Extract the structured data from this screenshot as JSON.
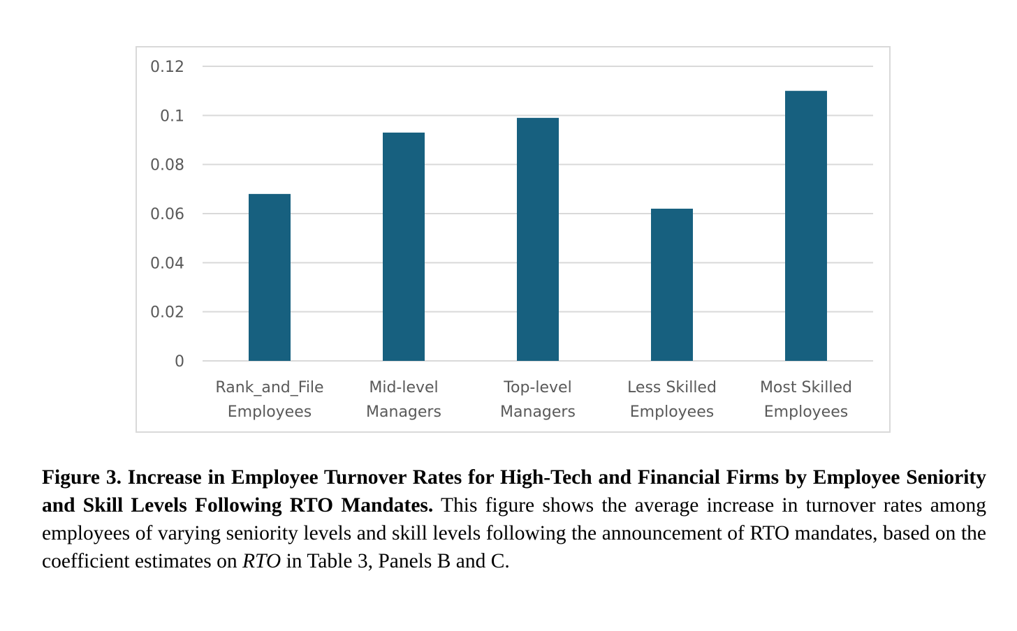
{
  "chart_data": {
    "type": "bar",
    "categories": [
      [
        "Rank_and_File",
        "Employees"
      ],
      [
        "Mid-level",
        "Managers"
      ],
      [
        "Top-level",
        "Managers"
      ],
      [
        "Less Skilled",
        "Employees"
      ],
      [
        "Most Skilled",
        "Employees"
      ]
    ],
    "values": [
      0.068,
      0.093,
      0.099,
      0.062,
      0.11
    ],
    "ylim": [
      0,
      0.12
    ],
    "yticks": [
      0,
      0.02,
      0.04,
      0.06,
      0.08,
      0.1,
      0.12
    ],
    "ytick_labels": [
      "0",
      "0.02",
      "0.04",
      "0.06",
      "0.08",
      "0.1",
      "0.12"
    ],
    "grid": true,
    "legend": "none",
    "bar_color": "#17607f",
    "grid_color": "#d9d9d9"
  },
  "caption": {
    "bold": "Figure 3. Increase in Employee Turnover Rates for High-Tech and Financial Firms by Employee Seniority and Skill Levels Following RTO Mandates.",
    "text_before_italic": " This figure shows the average increase in turnover rates among employees of varying seniority levels and skill levels following the announcement of RTO mandates, based on the coefficient estimates on ",
    "italic": "RTO",
    "text_after_italic": " in Table 3, Panels B and C."
  }
}
